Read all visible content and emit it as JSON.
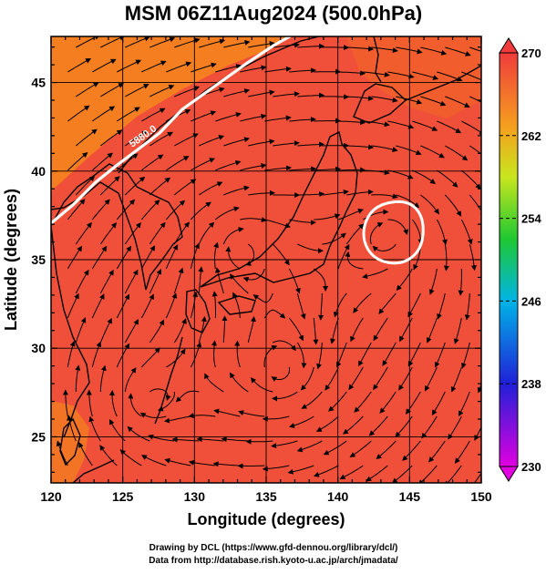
{
  "title": "MSM 06Z11Aug2024 (500.0hPa)",
  "map": {
    "xlabel": "Longitude (degrees)",
    "ylabel": "Latitude  (degrees)",
    "xlim": [
      120,
      150
    ],
    "ylim": [
      22.4,
      47.6
    ],
    "xticks": [
      "120",
      "125",
      "130",
      "135",
      "140",
      "145",
      "150"
    ],
    "yticks": [
      "25",
      "30",
      "35",
      "40",
      "45"
    ],
    "contour_label": "5880.0",
    "field_color": "#f0503a",
    "warm_color": "#f5841e",
    "line_color": "#000000",
    "contour_color": "#ffffff"
  },
  "colorbar": {
    "ticks": [
      "270",
      "262",
      "254",
      "246",
      "238",
      "230"
    ],
    "min": 230,
    "max": 270
  },
  "footer": {
    "line1": "Drawing by DCL (https://www.gfd-dennou.org/library/dcl/)",
    "line2": "Data from http://database.rish.kyoto-u.ac.jp/arch/jmadata/"
  }
}
